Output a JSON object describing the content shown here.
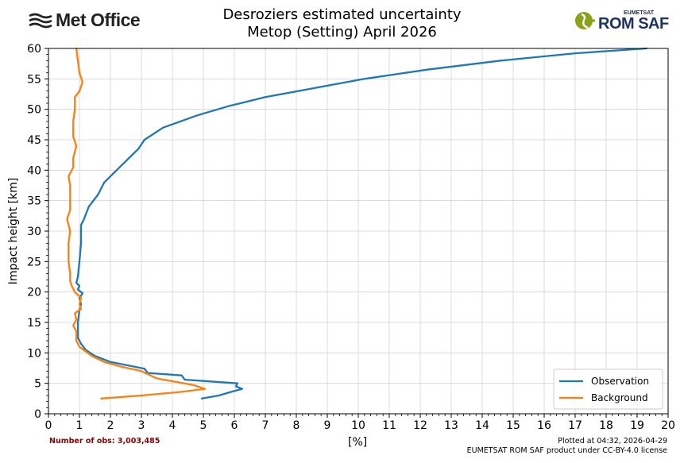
{
  "logos": {
    "met_office": "Met Office",
    "rom_saf_top": "EUMETSAT",
    "rom_saf_main": "ROM SAF"
  },
  "header": {
    "title_line1": "Desroziers estimated uncertainty",
    "title_line2": "Metop (Setting) April 2026"
  },
  "footer": {
    "obs_count": "Number of obs: 3,003,485",
    "plotted": "Plotted at 04:32, 2026-04-29",
    "license": "EUMETSAT ROM SAF product under CC-BY-4.0 license"
  },
  "colors": {
    "observation": "#1f77b4",
    "background": "#ff7f0e",
    "obs_count": "#8b0000"
  },
  "chart_data": {
    "type": "line",
    "title": "Desroziers estimated uncertainty Metop (Setting) April 2026",
    "xlabel": "[%]",
    "ylabel": "Impact height [km]",
    "xlim": [
      0,
      20
    ],
    "ylim": [
      0,
      60
    ],
    "xticks": [
      0,
      1,
      2,
      3,
      4,
      5,
      6,
      7,
      8,
      9,
      10,
      11,
      12,
      13,
      14,
      15,
      16,
      17,
      18,
      19,
      20
    ],
    "yticks": [
      0,
      5,
      10,
      15,
      20,
      25,
      30,
      35,
      40,
      45,
      50,
      55,
      60
    ],
    "grid": true,
    "legend_position": "lower-right",
    "series": [
      {
        "name": "Observation",
        "points": [
          [
            4.95,
            2.5
          ],
          [
            5.5,
            3.0
          ],
          [
            5.9,
            3.6
          ],
          [
            6.25,
            4.1
          ],
          [
            6.05,
            4.5
          ],
          [
            6.1,
            5.0
          ],
          [
            4.4,
            5.6
          ],
          [
            4.3,
            6.3
          ],
          [
            3.2,
            6.7
          ],
          [
            3.1,
            7.4
          ],
          [
            2.0,
            8.5
          ],
          [
            1.5,
            9.5
          ],
          [
            1.2,
            10.5
          ],
          [
            1.05,
            11.5
          ],
          [
            0.95,
            12.5
          ],
          [
            0.95,
            15.0
          ],
          [
            1.0,
            17.0
          ],
          [
            1.05,
            18.0
          ],
          [
            1.0,
            19.0
          ],
          [
            1.1,
            19.8
          ],
          [
            0.95,
            20.4
          ],
          [
            1.0,
            21.0
          ],
          [
            0.9,
            21.5
          ],
          [
            0.95,
            22.5
          ],
          [
            1.0,
            25.0
          ],
          [
            1.05,
            28.0
          ],
          [
            1.05,
            31.0
          ],
          [
            1.15,
            32.0
          ],
          [
            1.3,
            34.0
          ],
          [
            1.6,
            36.0
          ],
          [
            1.8,
            38.0
          ],
          [
            2.2,
            40.0
          ],
          [
            2.5,
            41.5
          ],
          [
            2.9,
            43.5
          ],
          [
            3.1,
            45.0
          ],
          [
            3.7,
            47.0
          ],
          [
            4.8,
            49.0
          ],
          [
            5.8,
            50.5
          ],
          [
            7.0,
            52.0
          ],
          [
            8.6,
            53.5
          ],
          [
            10.2,
            55.0
          ],
          [
            12.2,
            56.5
          ],
          [
            14.6,
            58.0
          ],
          [
            17.0,
            59.2
          ],
          [
            19.3,
            60.0
          ]
        ]
      },
      {
        "name": "Background",
        "points": [
          [
            1.7,
            2.5
          ],
          [
            3.0,
            3.0
          ],
          [
            4.3,
            3.6
          ],
          [
            5.05,
            4.1
          ],
          [
            4.7,
            4.7
          ],
          [
            3.5,
            5.8
          ],
          [
            3.0,
            7.0
          ],
          [
            2.3,
            7.8
          ],
          [
            1.8,
            8.5
          ],
          [
            1.4,
            9.5
          ],
          [
            1.0,
            11.0
          ],
          [
            0.9,
            12.0
          ],
          [
            0.9,
            13.5
          ],
          [
            0.8,
            14.5
          ],
          [
            0.9,
            15.5
          ],
          [
            0.85,
            16.5
          ],
          [
            1.05,
            17.2
          ],
          [
            1.0,
            18.0
          ],
          [
            1.05,
            19.0
          ],
          [
            0.85,
            20.0
          ],
          [
            0.75,
            21.0
          ],
          [
            0.7,
            21.8
          ],
          [
            0.7,
            23.0
          ],
          [
            0.65,
            25.0
          ],
          [
            0.65,
            28.0
          ],
          [
            0.7,
            30.0
          ],
          [
            0.6,
            32.0
          ],
          [
            0.7,
            33.5
          ],
          [
            0.7,
            35.0
          ],
          [
            0.7,
            37.5
          ],
          [
            0.65,
            39.0
          ],
          [
            0.8,
            40.5
          ],
          [
            0.8,
            42.0
          ],
          [
            0.9,
            44.0
          ],
          [
            0.8,
            45.5
          ],
          [
            0.8,
            48.0
          ],
          [
            0.85,
            50.0
          ],
          [
            0.85,
            52.0
          ],
          [
            1.0,
            53.0
          ],
          [
            1.1,
            54.5
          ],
          [
            1.0,
            56.0
          ],
          [
            0.95,
            58.0
          ],
          [
            0.9,
            60.0
          ]
        ]
      }
    ]
  }
}
